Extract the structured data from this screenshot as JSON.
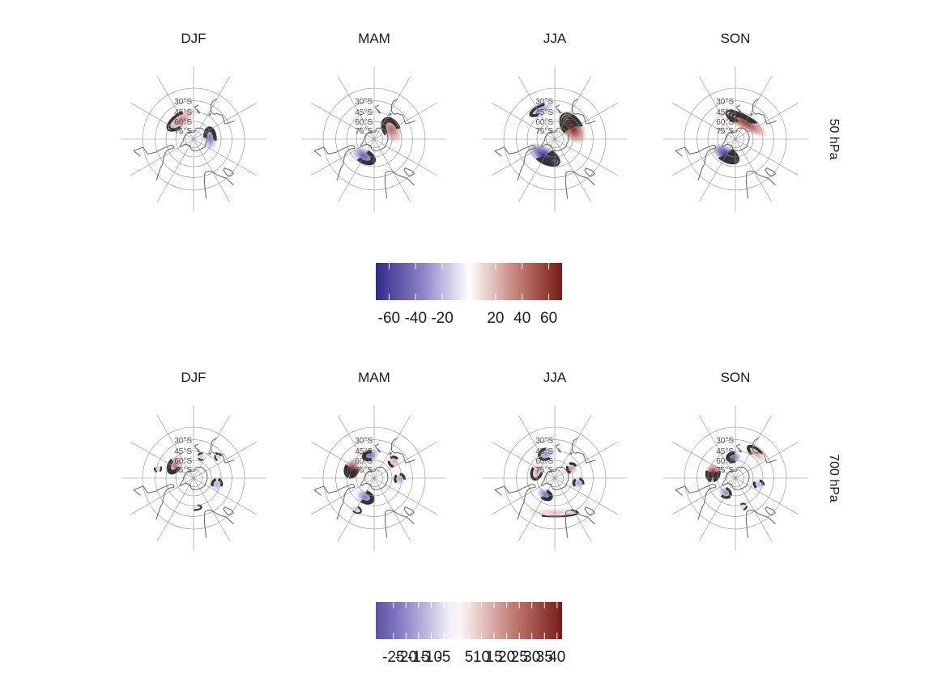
{
  "chart_data": {
    "type": "heatmap",
    "projection": "south-polar-stereographic",
    "seasons": [
      "DJF",
      "MAM",
      "JJA",
      "SON"
    ],
    "latitude_labels": [
      "30°S",
      "45°S",
      "60°S",
      "75°S"
    ],
    "rows": [
      {
        "level": "50 hPa",
        "colorbar": {
          "ticks": [
            -60,
            -40,
            -20,
            20,
            40,
            60
          ],
          "tick_labels": [
            "-60",
            "-40",
            "-20",
            "20",
            "40",
            "60"
          ],
          "range": [
            -70,
            70
          ]
        },
        "panels": [
          {
            "season": "DJF",
            "anomalies": [
              {
                "lon": 95,
                "lat": -62,
                "value": -38,
                "rlon": 42,
                "rlat": 11
              },
              {
                "lon": 215,
                "lat": -52,
                "value": 32,
                "rlon": 45,
                "rlat": 12
              }
            ]
          },
          {
            "season": "MAM",
            "anomalies": [
              {
                "lon": 330,
                "lat": -57,
                "value": -48,
                "rlon": 40,
                "rlat": 12
              },
              {
                "lon": 120,
                "lat": -57,
                "value": 42,
                "rlon": 42,
                "rlat": 15
              }
            ]
          },
          {
            "season": "JJA",
            "anomalies": [
              {
                "lon": 330,
                "lat": -58,
                "value": -68,
                "rlon": 55,
                "rlat": 14
              },
              {
                "lon": 125,
                "lat": -55,
                "value": 70,
                "rlon": 50,
                "rlat": 17
              },
              {
                "lon": 205,
                "lat": -38,
                "value": -30,
                "rlon": 25,
                "rlat": 7
              }
            ]
          },
          {
            "season": "SON",
            "anomalies": [
              {
                "lon": 330,
                "lat": -60,
                "value": -68,
                "rlon": 50,
                "rlat": 13
              },
              {
                "lon": 150,
                "lat": -58,
                "value": 58,
                "rlon": 75,
                "rlat": 12
              }
            ]
          }
        ]
      },
      {
        "level": "700 hPa",
        "colorbar": {
          "ticks": [
            -25,
            -20,
            -15,
            -10,
            -5,
            5,
            10,
            15,
            20,
            25,
            30,
            35,
            40
          ],
          "tick_labels": [
            "-25",
            "-20",
            "-15",
            "-10",
            "-5",
            "5",
            "10",
            "15",
            "20",
            "25",
            "30",
            "35",
            "40"
          ],
          "range": [
            -32,
            42
          ]
        },
        "panels": [
          {
            "season": "DJF",
            "anomalies": [
              {
                "lon": 235,
                "lat": -52,
                "value": 22,
                "rlon": 28,
                "rlat": 11
              },
              {
                "lon": 75,
                "lat": -50,
                "value": -14,
                "rlon": 16,
                "rlat": 9
              },
              {
                "lon": 160,
                "lat": -52,
                "value": -10,
                "rlon": 10,
                "rlat": 6
              },
              {
                "lon": 130,
                "lat": -38,
                "value": 10,
                "rlon": 8,
                "rlat": 5
              },
              {
                "lon": 255,
                "lat": -32,
                "value": -8,
                "rlon": 6,
                "rlat": 5
              },
              {
                "lon": 5,
                "lat": -42,
                "value": -6,
                "rlon": 12,
                "rlat": 4
              }
            ]
          },
          {
            "season": "MAM",
            "anomalies": [
              {
                "lon": 248,
                "lat": -50,
                "value": 38,
                "rlon": 25,
                "rlat": 12
              },
              {
                "lon": 190,
                "lat": -52,
                "value": -24,
                "rlon": 22,
                "rlat": 9
              },
              {
                "lon": 335,
                "lat": -55,
                "value": -22,
                "rlon": 28,
                "rlat": 11
              },
              {
                "lon": 130,
                "lat": -48,
                "value": 14,
                "rlon": 14,
                "rlat": 9
              },
              {
                "lon": 88,
                "lat": -48,
                "value": -14,
                "rlon": 14,
                "rlat": 9
              },
              {
                "lon": 330,
                "lat": -33,
                "value": 10,
                "rlon": 10,
                "rlat": 5
              }
            ]
          },
          {
            "season": "JJA",
            "anomalies": [
              {
                "lon": 330,
                "lat": -58,
                "value": -24,
                "rlon": 26,
                "rlat": 9
              },
              {
                "lon": 250,
                "lat": -58,
                "value": 14,
                "rlon": 30,
                "rlat": 10
              },
              {
                "lon": 200,
                "lat": -48,
                "value": -18,
                "rlon": 20,
                "rlat": 10
              },
              {
                "lon": 120,
                "lat": -57,
                "value": 16,
                "rlon": 18,
                "rlat": 9
              },
              {
                "lon": 78,
                "lat": -50,
                "value": -16,
                "rlon": 14,
                "rlat": 9
              },
              {
                "lon": 0,
                "lat": -35,
                "value": 10,
                "rlon": 45,
                "rlat": 6
              }
            ]
          },
          {
            "season": "SON",
            "anomalies": [
              {
                "lon": 258,
                "lat": -52,
                "value": 40,
                "rlon": 24,
                "rlat": 12
              },
              {
                "lon": 185,
                "lat": -55,
                "value": -26,
                "rlon": 22,
                "rlat": 9
              },
              {
                "lon": 325,
                "lat": -60,
                "value": -18,
                "rlon": 24,
                "rlat": 9
              },
              {
                "lon": 75,
                "lat": -50,
                "value": -14,
                "rlon": 12,
                "rlat": 9
              },
              {
                "lon": 140,
                "lat": -38,
                "value": 16,
                "rlon": 22,
                "rlat": 7
              },
              {
                "lon": 15,
                "lat": -42,
                "value": 8,
                "rlon": 8,
                "rlat": 5
              }
            ]
          }
        ]
      }
    ]
  },
  "colors": {
    "negative_end": "#2e2b8a",
    "negative_mid": "#8c82c8",
    "neutral": "#ffffff",
    "positive_mid": "#c7837d",
    "positive_end": "#781c16",
    "contour": "#333333",
    "grid": "#8c8c8c",
    "coast": "#6e6e6e"
  }
}
